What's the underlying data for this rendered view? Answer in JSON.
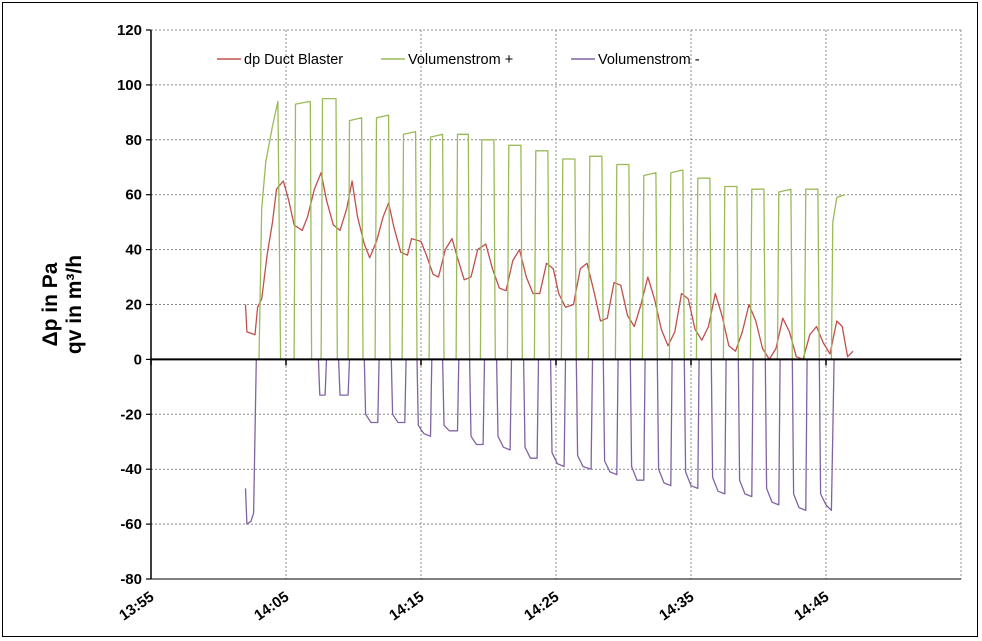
{
  "chart_data": {
    "type": "line",
    "ylabel": [
      "Δp in Pa",
      "qv in m³/h"
    ],
    "xlabel": "",
    "ylim": [
      -80,
      120
    ],
    "yticks": [
      -80,
      -60,
      -40,
      -20,
      0,
      20,
      40,
      60,
      80,
      100,
      120
    ],
    "xlim_minutes": [
      0,
      60
    ],
    "xticks": [
      "13:55",
      "14:05",
      "14:15",
      "14:25",
      "14:35",
      "14:45"
    ],
    "grid": true,
    "legend_position": "top",
    "series": [
      {
        "name": "dp Duct Blaster",
        "color": "#c0504d",
        "points": [
          [
            "14:02.0",
            20
          ],
          [
            "14:02.1",
            10
          ],
          [
            "14:02.7",
            9
          ],
          [
            "14:02.9",
            19
          ],
          [
            "14:03.2",
            22
          ],
          [
            "14:03.6",
            38
          ],
          [
            "14:04.0",
            50
          ],
          [
            "14:04.3",
            62
          ],
          [
            "14:04.8",
            65
          ],
          [
            "14:05.2",
            58
          ],
          [
            "14:05.6",
            49
          ],
          [
            "14:06.2",
            47
          ],
          [
            "14:06.6",
            52
          ],
          [
            "14:07.1",
            62
          ],
          [
            "14:07.6",
            68
          ],
          [
            "14:08.0",
            58
          ],
          [
            "14:08.5",
            49
          ],
          [
            "14:09.0",
            47
          ],
          [
            "14:09.5",
            55
          ],
          [
            "14:09.9",
            65
          ],
          [
            "14:10.3",
            52
          ],
          [
            "14:10.8",
            42
          ],
          [
            "14:11.2",
            37
          ],
          [
            "14:11.7",
            43
          ],
          [
            "14:12.2",
            52
          ],
          [
            "14:12.6",
            57
          ],
          [
            "14:13.0",
            48
          ],
          [
            "14:13.5",
            39
          ],
          [
            "14:14.0",
            38
          ],
          [
            "14:14.3",
            44
          ],
          [
            "14:15.0",
            43
          ],
          [
            "14:15.4",
            38
          ],
          [
            "14:15.9",
            31
          ],
          [
            "14:16.3",
            30
          ],
          [
            "14:16.8",
            40
          ],
          [
            "14:17.3",
            44
          ],
          [
            "14:17.7",
            37
          ],
          [
            "14:18.2",
            29
          ],
          [
            "14:18.7",
            30
          ],
          [
            "14:19.2",
            40
          ],
          [
            "14:19.8",
            42
          ],
          [
            "14:20.3",
            33
          ],
          [
            "14:20.8",
            26
          ],
          [
            "14:21.3",
            25
          ],
          [
            "14:21.8",
            36
          ],
          [
            "14:22.3",
            40
          ],
          [
            "14:22.8",
            30
          ],
          [
            "14:23.3",
            24
          ],
          [
            "14:23.8",
            24
          ],
          [
            "14:24.3",
            35
          ],
          [
            "14:24.8",
            33
          ],
          [
            "14:25.2",
            24
          ],
          [
            "14:25.7",
            19
          ],
          [
            "14:26.3",
            20
          ],
          [
            "14:26.8",
            33
          ],
          [
            "14:27.3",
            35
          ],
          [
            "14:27.8",
            25
          ],
          [
            "14:28.3",
            14
          ],
          [
            "14:28.8",
            15
          ],
          [
            "14:29.3",
            28
          ],
          [
            "14:29.8",
            27
          ],
          [
            "14:30.3",
            16
          ],
          [
            "14:30.8",
            12
          ],
          [
            "14:31.3",
            20
          ],
          [
            "14:31.8",
            30
          ],
          [
            "14:32.3",
            22
          ],
          [
            "14:32.8",
            11
          ],
          [
            "14:33.3",
            5
          ],
          [
            "14:33.8",
            10
          ],
          [
            "14:34.3",
            24
          ],
          [
            "14:34.8",
            22
          ],
          [
            "14:35.3",
            11
          ],
          [
            "14:35.8",
            7
          ],
          [
            "14:36.3",
            12
          ],
          [
            "14:36.8",
            24
          ],
          [
            "14:37.3",
            16
          ],
          [
            "14:37.8",
            5
          ],
          [
            "14:38.3",
            3
          ],
          [
            "14:38.8",
            10
          ],
          [
            "14:39.3",
            20
          ],
          [
            "14:39.8",
            14
          ],
          [
            "14:40.3",
            4
          ],
          [
            "14:40.8",
            0
          ],
          [
            "14:41.3",
            4
          ],
          [
            "14:41.8",
            15
          ],
          [
            "14:42.3",
            10
          ],
          [
            "14:42.8",
            1
          ],
          [
            "14:43.3",
            0
          ],
          [
            "14:43.8",
            9
          ],
          [
            "14:44.3",
            12
          ],
          [
            "14:44.8",
            6
          ],
          [
            "14:45.3",
            2
          ],
          [
            "14:45.8",
            14
          ],
          [
            "14:46.2",
            12
          ],
          [
            "14:46.6",
            1
          ],
          [
            "14:47.0",
            3
          ]
        ]
      },
      {
        "name": "Volumenstrom +",
        "color": "#9bbb59",
        "points": [
          [
            "14:02.0",
            0
          ],
          [
            "14:03.0",
            0
          ],
          [
            "14:03.2",
            55
          ],
          [
            "14:03.5",
            72
          ],
          [
            "14:04.0",
            85
          ],
          [
            "14:04.4",
            94
          ],
          [
            "14:04.6",
            0
          ],
          [
            "14:05.6",
            0
          ],
          [
            "14:05.7",
            93
          ],
          [
            "14:06.8",
            94
          ],
          [
            "14:06.9",
            0
          ],
          [
            "14:07.6",
            0
          ],
          [
            "14:07.7",
            95
          ],
          [
            "14:08.7",
            95
          ],
          [
            "14:08.8",
            0
          ],
          [
            "14:09.6",
            0
          ],
          [
            "14:09.7",
            87
          ],
          [
            "14:10.6",
            88
          ],
          [
            "14:10.7",
            0
          ],
          [
            "14:11.6",
            0
          ],
          [
            "14:11.7",
            88
          ],
          [
            "14:12.6",
            89
          ],
          [
            "14:12.7",
            0
          ],
          [
            "14:13.6",
            0
          ],
          [
            "14:13.7",
            82
          ],
          [
            "14:14.6",
            83
          ],
          [
            "14:14.7",
            0
          ],
          [
            "14:15.6",
            0
          ],
          [
            "14:15.7",
            81
          ],
          [
            "14:16.6",
            82
          ],
          [
            "14:16.7",
            0
          ],
          [
            "14:17.6",
            0
          ],
          [
            "14:17.7",
            82
          ],
          [
            "14:18.5",
            82
          ],
          [
            "14:18.6",
            0
          ],
          [
            "14:19.4",
            0
          ],
          [
            "14:19.5",
            80
          ],
          [
            "14:20.4",
            80
          ],
          [
            "14:20.5",
            0
          ],
          [
            "14:21.4",
            0
          ],
          [
            "14:21.5",
            78
          ],
          [
            "14:22.4",
            78
          ],
          [
            "14:22.5",
            0
          ],
          [
            "14:23.4",
            0
          ],
          [
            "14:23.5",
            76
          ],
          [
            "14:24.4",
            76
          ],
          [
            "14:24.5",
            0
          ],
          [
            "14:25.4",
            0
          ],
          [
            "14:25.5",
            73
          ],
          [
            "14:26.4",
            73
          ],
          [
            "14:26.5",
            0
          ],
          [
            "14:27.4",
            0
          ],
          [
            "14:27.5",
            74
          ],
          [
            "14:28.4",
            74
          ],
          [
            "14:28.5",
            0
          ],
          [
            "14:29.4",
            0
          ],
          [
            "14:29.5",
            71
          ],
          [
            "14:30.4",
            71
          ],
          [
            "14:30.5",
            0
          ],
          [
            "14:31.4",
            0
          ],
          [
            "14:31.5",
            67
          ],
          [
            "14:32.4",
            68
          ],
          [
            "14:32.5",
            0
          ],
          [
            "14:33.4",
            0
          ],
          [
            "14:33.5",
            68
          ],
          [
            "14:34.4",
            69
          ],
          [
            "14:34.5",
            0
          ],
          [
            "14:35.4",
            0
          ],
          [
            "14:35.5",
            66
          ],
          [
            "14:36.4",
            66
          ],
          [
            "14:36.5",
            0
          ],
          [
            "14:37.4",
            0
          ],
          [
            "14:37.5",
            63
          ],
          [
            "14:38.4",
            63
          ],
          [
            "14:38.5",
            0
          ],
          [
            "14:39.4",
            0
          ],
          [
            "14:39.5",
            62
          ],
          [
            "14:40.4",
            62
          ],
          [
            "14:40.5",
            0
          ],
          [
            "14:41.4",
            0
          ],
          [
            "14:41.5",
            61
          ],
          [
            "14:42.4",
            62
          ],
          [
            "14:42.5",
            0
          ],
          [
            "14:43.4",
            0
          ],
          [
            "14:43.5",
            62
          ],
          [
            "14:44.4",
            62
          ],
          [
            "14:44.5",
            0
          ],
          [
            "14:45.4",
            0
          ],
          [
            "14:45.5",
            50
          ],
          [
            "14:45.8",
            59
          ],
          [
            "14:46.4",
            60
          ]
        ]
      },
      {
        "name": "Volumenstrom -",
        "color": "#8064a2",
        "points": [
          [
            "14:02.0",
            -47
          ],
          [
            "14:02.1",
            -60
          ],
          [
            "14:02.4",
            -59
          ],
          [
            "14:02.6",
            -56
          ],
          [
            "14:02.8",
            0
          ],
          [
            "14:07.4",
            0
          ],
          [
            "14:07.5",
            -13
          ],
          [
            "14:07.9",
            -13
          ],
          [
            "14:08.0",
            0
          ],
          [
            "14:08.9",
            0
          ],
          [
            "14:09.0",
            -13
          ],
          [
            "14:09.6",
            -13
          ],
          [
            "14:09.7",
            0
          ],
          [
            "14:10.8",
            0
          ],
          [
            "14:10.9",
            -20
          ],
          [
            "14:11.3",
            -23
          ],
          [
            "14:11.8",
            -23
          ],
          [
            "14:11.9",
            0
          ],
          [
            "14:12.8",
            0
          ],
          [
            "14:12.9",
            -20
          ],
          [
            "14:13.3",
            -23
          ],
          [
            "14:13.8",
            -23
          ],
          [
            "14:13.9",
            0
          ],
          [
            "14:14.7",
            0
          ],
          [
            "14:14.8",
            -24
          ],
          [
            "14:15.2",
            -27
          ],
          [
            "14:15.7",
            -28
          ],
          [
            "14:15.8",
            0
          ],
          [
            "14:16.6",
            0
          ],
          [
            "14:16.7",
            -24
          ],
          [
            "14:17.1",
            -26
          ],
          [
            "14:17.7",
            -26
          ],
          [
            "14:17.8",
            0
          ],
          [
            "14:18.6",
            0
          ],
          [
            "14:18.7",
            -28
          ],
          [
            "14:19.1",
            -31
          ],
          [
            "14:19.6",
            -31
          ],
          [
            "14:19.7",
            0
          ],
          [
            "14:20.6",
            0
          ],
          [
            "14:20.7",
            -28
          ],
          [
            "14:21.1",
            -32
          ],
          [
            "14:21.6",
            -33
          ],
          [
            "14:21.7",
            0
          ],
          [
            "14:22.6",
            0
          ],
          [
            "14:22.7",
            -32
          ],
          [
            "14:23.1",
            -36
          ],
          [
            "14:23.6",
            -36
          ],
          [
            "14:23.7",
            0
          ],
          [
            "14:24.6",
            0
          ],
          [
            "14:24.7",
            -34
          ],
          [
            "14:25.1",
            -38
          ],
          [
            "14:25.6",
            -39
          ],
          [
            "14:25.7",
            0
          ],
          [
            "14:26.5",
            0
          ],
          [
            "14:26.6",
            -35
          ],
          [
            "14:27.0",
            -39
          ],
          [
            "14:27.6",
            -40
          ],
          [
            "14:27.7",
            0
          ],
          [
            "14:28.5",
            0
          ],
          [
            "14:28.6",
            -37
          ],
          [
            "14:29.0",
            -41
          ],
          [
            "14:29.5",
            -42
          ],
          [
            "14:29.6",
            0
          ],
          [
            "14:30.5",
            0
          ],
          [
            "14:30.6",
            -39
          ],
          [
            "14:31.0",
            -44
          ],
          [
            "14:31.5",
            -44
          ],
          [
            "14:31.6",
            0
          ],
          [
            "14:32.5",
            0
          ],
          [
            "14:32.6",
            -40
          ],
          [
            "14:33.0",
            -45
          ],
          [
            "14:33.5",
            -46
          ],
          [
            "14:33.6",
            0
          ],
          [
            "14:34.5",
            0
          ],
          [
            "14:34.6",
            -41
          ],
          [
            "14:35.0",
            -46
          ],
          [
            "14:35.5",
            -47
          ],
          [
            "14:35.6",
            0
          ],
          [
            "14:36.5",
            0
          ],
          [
            "14:36.6",
            -43
          ],
          [
            "14:37.0",
            -48
          ],
          [
            "14:37.5",
            -49
          ],
          [
            "14:37.6",
            0
          ],
          [
            "14:38.5",
            0
          ],
          [
            "14:38.6",
            -44
          ],
          [
            "14:39.0",
            -49
          ],
          [
            "14:39.5",
            -50
          ],
          [
            "14:39.6",
            0
          ],
          [
            "14:40.5",
            0
          ],
          [
            "14:40.6",
            -47
          ],
          [
            "14:41.0",
            -52
          ],
          [
            "14:41.5",
            -53
          ],
          [
            "14:41.6",
            0
          ],
          [
            "14:42.5",
            0
          ],
          [
            "14:42.6",
            -49
          ],
          [
            "14:43.0",
            -54
          ],
          [
            "14:43.5",
            -55
          ],
          [
            "14:43.6",
            0
          ],
          [
            "14:44.5",
            0
          ],
          [
            "14:44.6",
            -49
          ],
          [
            "14:45.0",
            -53
          ],
          [
            "14:45.4",
            -55
          ],
          [
            "14:45.6",
            0
          ]
        ]
      }
    ]
  }
}
